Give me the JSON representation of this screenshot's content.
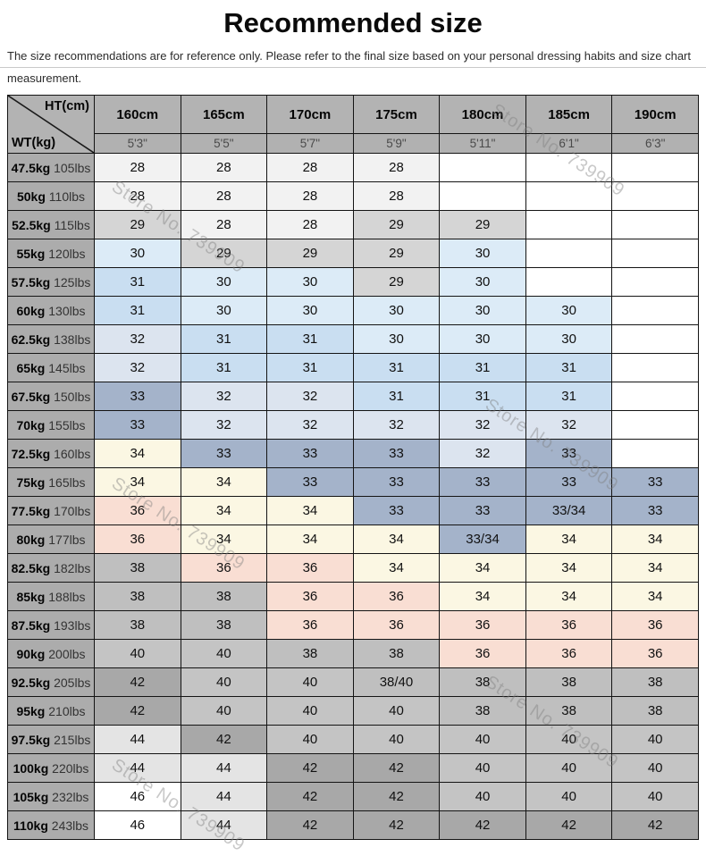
{
  "page": {
    "title": "Recommended size",
    "subtitle_line1": "The size recommendations are for reference only. Please refer to the final size based on your personal dressing habits and size chart",
    "subtitle_line2": "measurement."
  },
  "watermark": {
    "text": "Store No. 739909"
  },
  "table": {
    "corner": {
      "top_right": "HT(cm)",
      "bottom_left": "WT(kg)"
    },
    "heights_cm": [
      "160cm",
      "165cm",
      "170cm",
      "175cm",
      "180cm",
      "185cm",
      "190cm"
    ],
    "heights_ft": [
      "5'3\"",
      "5'5\"",
      "5'7\"",
      "5'9\"",
      "5'11\"",
      "6'1\"",
      "6'3\""
    ],
    "rows": [
      {
        "wt": "47.5kg",
        "lbs": "105lbs",
        "sizes": [
          "28",
          "28",
          "28",
          "28",
          "",
          "",
          ""
        ]
      },
      {
        "wt": "50kg",
        "lbs": "110lbs",
        "sizes": [
          "28",
          "28",
          "28",
          "28",
          "",
          "",
          ""
        ]
      },
      {
        "wt": "52.5kg",
        "lbs": "115lbs",
        "sizes": [
          "29",
          "28",
          "28",
          "29",
          "29",
          "",
          ""
        ]
      },
      {
        "wt": "55kg",
        "lbs": "120lbs",
        "sizes": [
          "30",
          "29",
          "29",
          "29",
          "30",
          "",
          ""
        ]
      },
      {
        "wt": "57.5kg",
        "lbs": "125lbs",
        "sizes": [
          "31",
          "30",
          "30",
          "29",
          "30",
          "",
          ""
        ]
      },
      {
        "wt": "60kg",
        "lbs": "130lbs",
        "sizes": [
          "31",
          "30",
          "30",
          "30",
          "30",
          "30",
          ""
        ]
      },
      {
        "wt": "62.5kg",
        "lbs": "138lbs",
        "sizes": [
          "32",
          "31",
          "31",
          "30",
          "30",
          "30",
          ""
        ]
      },
      {
        "wt": "65kg",
        "lbs": "145lbs",
        "sizes": [
          "32",
          "31",
          "31",
          "31",
          "31",
          "31",
          ""
        ]
      },
      {
        "wt": "67.5kg",
        "lbs": "150lbs",
        "sizes": [
          "33",
          "32",
          "32",
          "31",
          "31",
          "31",
          ""
        ]
      },
      {
        "wt": "70kg",
        "lbs": "155lbs",
        "sizes": [
          "33",
          "32",
          "32",
          "32",
          "32",
          "32",
          ""
        ]
      },
      {
        "wt": "72.5kg",
        "lbs": "160lbs",
        "sizes": [
          "34",
          "33",
          "33",
          "33",
          "32",
          "33",
          ""
        ]
      },
      {
        "wt": "75kg",
        "lbs": "165lbs",
        "sizes": [
          "34",
          "34",
          "33",
          "33",
          "33",
          "33",
          "33"
        ]
      },
      {
        "wt": "77.5kg",
        "lbs": "170lbs",
        "sizes": [
          "36",
          "34",
          "34",
          "33",
          "33",
          "33/34",
          "33"
        ]
      },
      {
        "wt": "80kg",
        "lbs": "177lbs",
        "sizes": [
          "36",
          "34",
          "34",
          "34",
          "33/34",
          "34",
          "34"
        ]
      },
      {
        "wt": "82.5kg",
        "lbs": "182lbs",
        "sizes": [
          "38",
          "36",
          "36",
          "34",
          "34",
          "34",
          "34"
        ]
      },
      {
        "wt": "85kg",
        "lbs": "188lbs",
        "sizes": [
          "38",
          "38",
          "36",
          "36",
          "34",
          "34",
          "34"
        ]
      },
      {
        "wt": "87.5kg",
        "lbs": "193lbs",
        "sizes": [
          "38",
          "38",
          "36",
          "36",
          "36",
          "36",
          "36"
        ]
      },
      {
        "wt": "90kg",
        "lbs": "200lbs",
        "sizes": [
          "40",
          "40",
          "38",
          "38",
          "36",
          "36",
          "36"
        ]
      },
      {
        "wt": "92.5kg",
        "lbs": "205lbs",
        "sizes": [
          "42",
          "40",
          "40",
          "38/40",
          "38",
          "38",
          "38"
        ]
      },
      {
        "wt": "95kg",
        "lbs": "210lbs",
        "sizes": [
          "42",
          "40",
          "40",
          "40",
          "38",
          "38",
          "38"
        ]
      },
      {
        "wt": "97.5kg",
        "lbs": "215lbs",
        "sizes": [
          "44",
          "42",
          "40",
          "40",
          "40",
          "40",
          "40"
        ]
      },
      {
        "wt": "100kg",
        "lbs": "220lbs",
        "sizes": [
          "44",
          "44",
          "42",
          "42",
          "40",
          "40",
          "40"
        ]
      },
      {
        "wt": "105kg",
        "lbs": "232lbs",
        "sizes": [
          "46",
          "44",
          "42",
          "42",
          "40",
          "40",
          "40"
        ]
      },
      {
        "wt": "110kg",
        "lbs": "243lbs",
        "sizes": [
          "46",
          "44",
          "42",
          "42",
          "42",
          "42",
          "42"
        ]
      }
    ]
  },
  "colors": {
    "header_gray": "#b3b3b3",
    "row_header_gray": "#acacac",
    "size28": "#f2f2f2",
    "size29": "#d5d5d5",
    "size30": "#dcebf7",
    "size31": "#c9def1",
    "size32": "#dce4ef",
    "size33": "#a4b3ca",
    "size34": "#fbf7e3",
    "size36": "#f9ded3",
    "size38": "#bfbfbf",
    "size40": "#c4c4c4",
    "size42": "#a8a8a8",
    "size44": "#e4e4e4",
    "size46": "#ffffff"
  }
}
